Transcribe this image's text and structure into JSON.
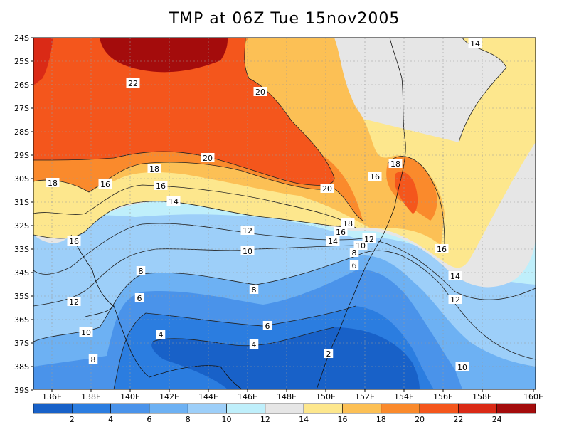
{
  "title": "TMP at 06Z Tue 15nov2005",
  "chart_data": {
    "type": "heatmap",
    "title": "TMP at 06Z Tue 15nov2005",
    "x_ticks": [
      "136E",
      "138E",
      "140E",
      "142E",
      "144E",
      "146E",
      "148E",
      "150E",
      "152E",
      "154E",
      "156E",
      "158E",
      "160E"
    ],
    "y_ticks": [
      "24S",
      "25S",
      "26S",
      "27S",
      "28S",
      "29S",
      "30S",
      "31S",
      "32S",
      "33S",
      "34S",
      "35S",
      "36S",
      "37S",
      "38S",
      "39S"
    ],
    "xlim": [
      135.5,
      160
    ],
    "ylim": [
      -39,
      -24
    ],
    "grid": true,
    "colorbar": {
      "labels": [
        "2",
        "4",
        "6",
        "8",
        "10",
        "12",
        "14",
        "16",
        "18",
        "20",
        "22",
        "24"
      ],
      "colors": [
        "#1861c8",
        "#2b7de0",
        "#4a93ea",
        "#6db1f3",
        "#9dcff9",
        "#bfeffb",
        "#e6e6e6",
        "#fde78d",
        "#fcc055",
        "#fa8a2c",
        "#f4561c",
        "#da2a16",
        "#a40c0c"
      ]
    },
    "contour_labels": [
      "14",
      "22",
      "20",
      "18",
      "20",
      "18",
      "16",
      "20",
      "16",
      "14",
      "16",
      "18",
      "16",
      "18",
      "16",
      "14",
      "14",
      "12",
      "12",
      "10",
      "10",
      "8",
      "8",
      "6",
      "8",
      "6",
      "6",
      "4",
      "4",
      "2",
      "12",
      "10",
      "8",
      "16",
      "14",
      "12",
      "10"
    ]
  }
}
